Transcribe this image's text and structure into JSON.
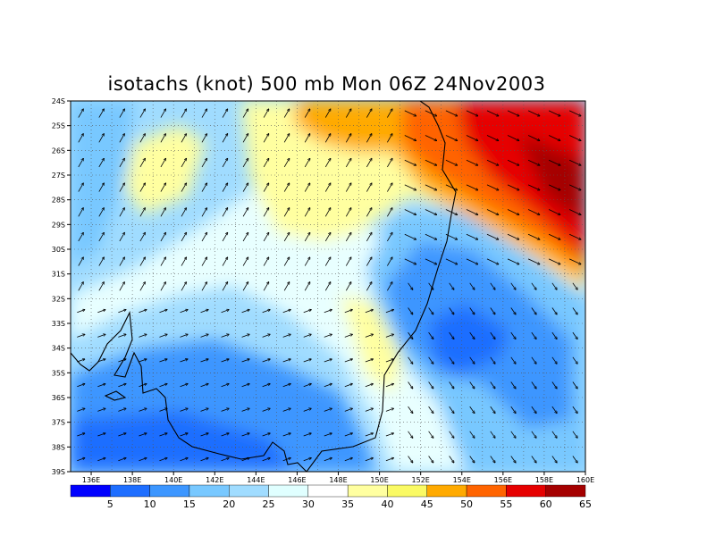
{
  "title": "isotachs (knot) 500 mb Mon 06Z 24Nov2003",
  "chart_data": {
    "type": "heatmap",
    "title": "isotachs (knot) 500 mb Mon 06Z 24Nov2003",
    "xlim": [
      135,
      160
    ],
    "ylim": [
      -39,
      -24
    ],
    "lon_ticks": [
      136,
      138,
      140,
      142,
      144,
      146,
      148,
      150,
      152,
      154,
      156,
      158,
      160
    ],
    "lon_tick_labels": [
      "136E",
      "138E",
      "140E",
      "142E",
      "144E",
      "146E",
      "148E",
      "150E",
      "152E",
      "154E",
      "156E",
      "158E",
      "160E"
    ],
    "lat_ticks": [
      -24,
      -25,
      -26,
      -27,
      -28,
      -29,
      -30,
      -31,
      -32,
      -33,
      -34,
      -35,
      -36,
      -37,
      -38,
      -39
    ],
    "lat_tick_labels": [
      "24S",
      "25S",
      "26S",
      "27S",
      "28S",
      "29S",
      "30S",
      "31S",
      "32S",
      "33S",
      "34S",
      "35S",
      "36S",
      "37S",
      "38S",
      "39S"
    ],
    "grid": true,
    "colorbar": {
      "levels": [
        5,
        10,
        15,
        20,
        25,
        30,
        35,
        40,
        45,
        50,
        55,
        60,
        65
      ],
      "labels": [
        "5",
        "10",
        "15",
        "20",
        "25",
        "30",
        "35",
        "40",
        "45",
        "50",
        "55",
        "60",
        "65"
      ],
      "colors": [
        "#0000ff",
        "#1e6eff",
        "#3c96ff",
        "#78c8ff",
        "#a0dcff",
        "#e0ffff",
        "#ffffff",
        "#ffffa0",
        "#fafa64",
        "#ffaa00",
        "#ff6400",
        "#e60000",
        "#a50000"
      ],
      "position": "bottom"
    }
  }
}
